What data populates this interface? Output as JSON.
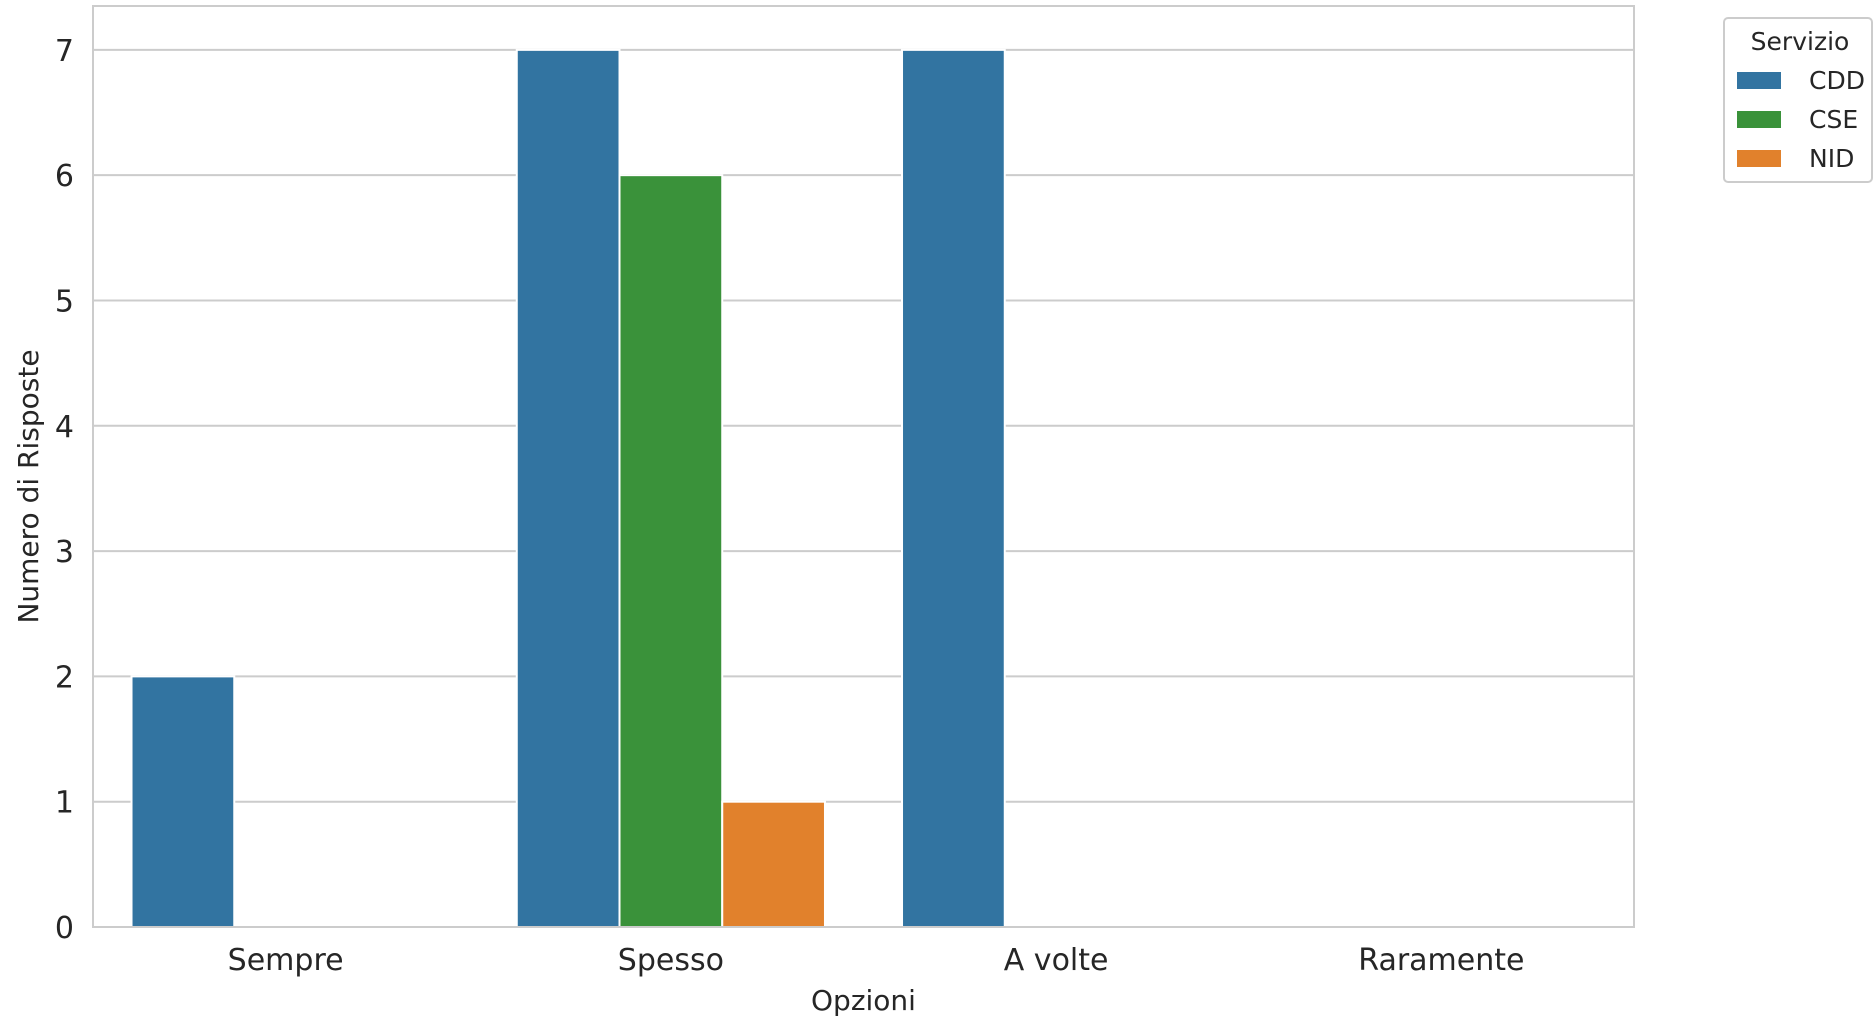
{
  "chart_data": {
    "type": "bar",
    "categories": [
      "Sempre",
      "Spesso",
      "A volte",
      "Raramente"
    ],
    "series": [
      {
        "name": "CDD",
        "values": [
          2,
          7,
          7,
          0
        ],
        "color": "#3274a1"
      },
      {
        "name": "CSE",
        "values": [
          0,
          6,
          0,
          0
        ],
        "color": "#3a923a"
      },
      {
        "name": "NID",
        "values": [
          0,
          1,
          0,
          0
        ],
        "color": "#e1812c"
      }
    ],
    "title": "",
    "xlabel": "Opzioni",
    "ylabel": "Numero di Risposte",
    "ylim": [
      0,
      7.35
    ],
    "yticks": [
      0,
      1,
      2,
      3,
      4,
      5,
      6,
      7
    ],
    "grid": true,
    "legend": {
      "title": "Servizio",
      "placement": "outside-top-right"
    }
  }
}
